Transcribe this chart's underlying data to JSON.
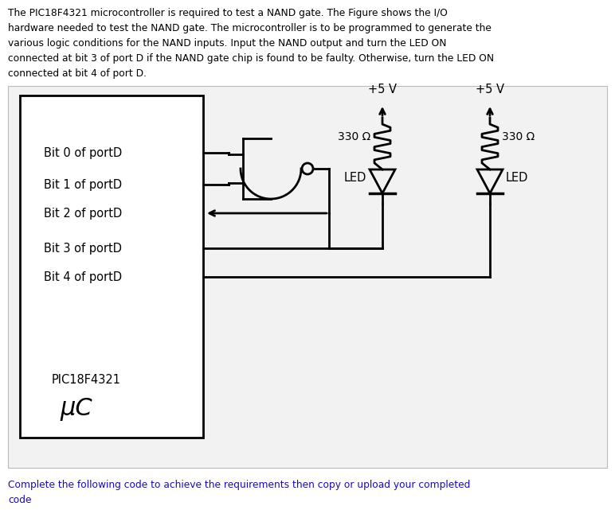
{
  "description_text": "The PIC18F4321 microcontroller is required to test a NAND gate. The Figure shows the I/O\nhardware needed to test the NAND gate. The microcontroller is to be programmed to generate the\nvarious logic conditions for the NAND inputs. Input the NAND output and turn the LED ON\nconnected at bit 3 of port D if the NAND gate chip is found to be faulty. Otherwise, turn the LED ON\nconnected at bit 4 of port D.",
  "footer_text": "Complete the following code to achieve the requirements then copy or upload your completed\ncode",
  "description_color": "#000000",
  "footer_color": "#1a0dab",
  "bg_color": "#ffffff",
  "diagram_bg": "#f2f2f2",
  "bit_labels": [
    "Bit 0 of portD",
    "Bit 1 of portD",
    "Bit 2 of portD",
    "Bit 3 of portD",
    "Bit 4 of portD"
  ],
  "pic_label": "PIC18F4321",
  "uc_label": "μC",
  "v5_label": "+5 V",
  "r330_label": "330 Ω",
  "led_label": "LED"
}
